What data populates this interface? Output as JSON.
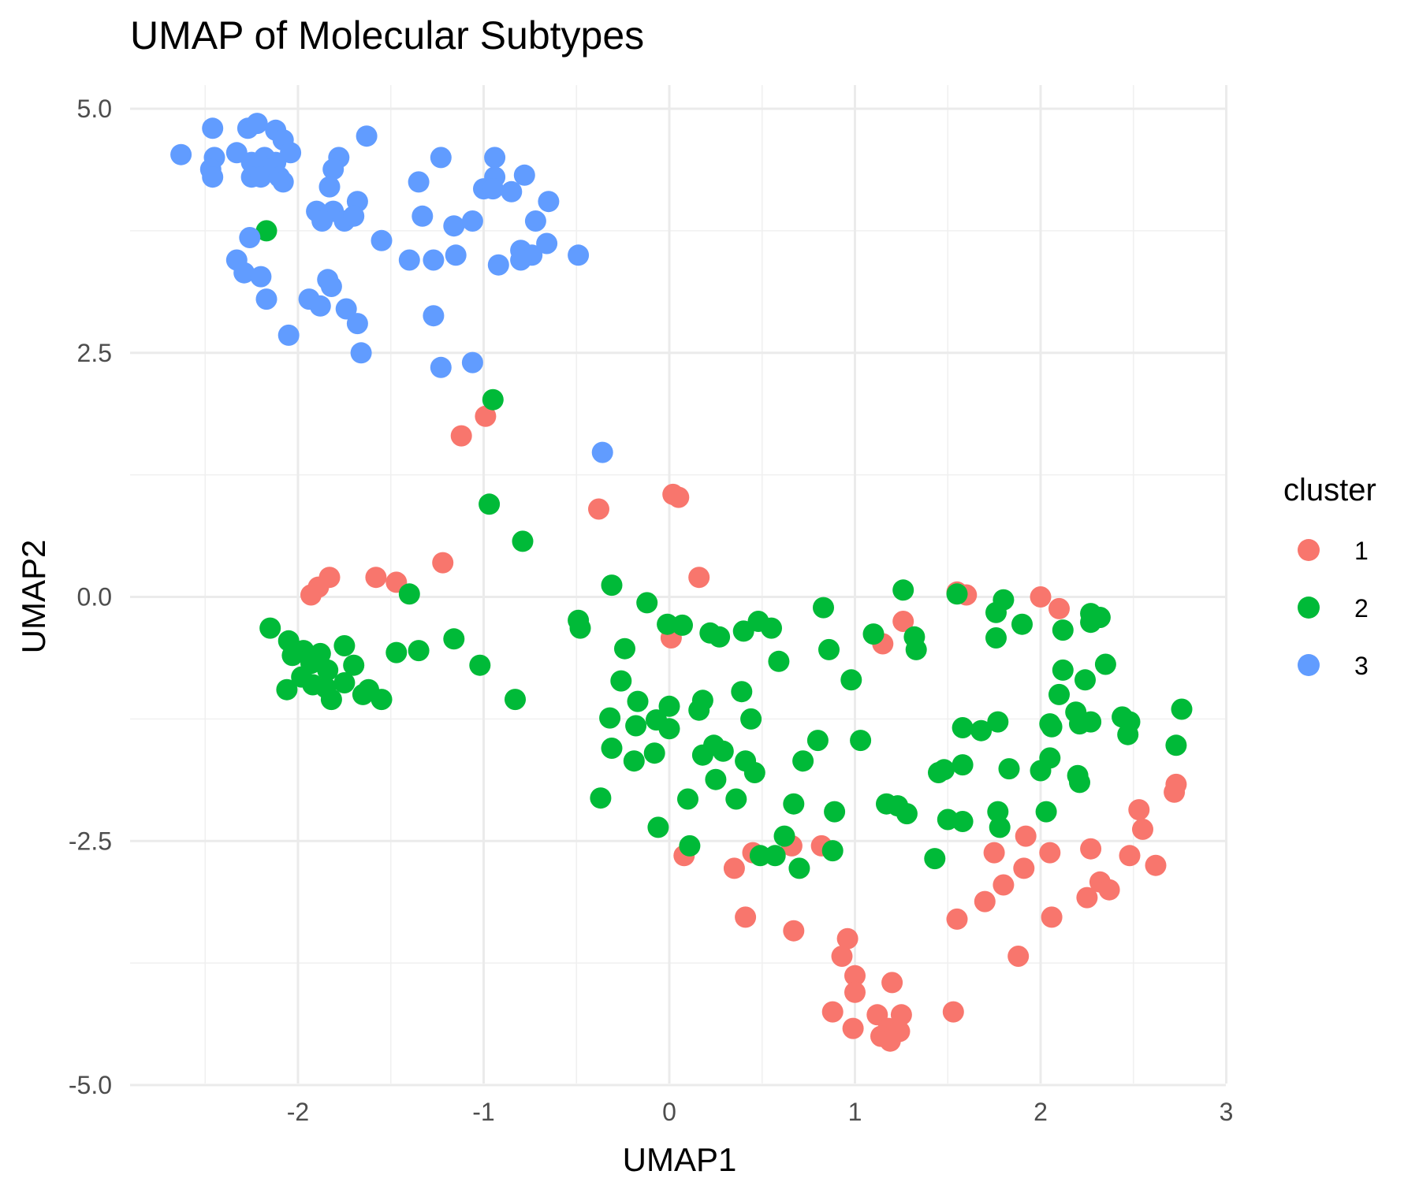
{
  "chart_data": {
    "type": "scatter",
    "title": "UMAP of Molecular Subtypes",
    "xlabel": "UMAP1",
    "ylabel": "UMAP2",
    "xlim": [
      -2.95,
      3.0
    ],
    "ylim": [
      -5.0,
      5.0
    ],
    "xticks": [
      -2,
      -1,
      0,
      1,
      2,
      3
    ],
    "yticks": [
      5.0,
      2.5,
      0.0,
      -2.5,
      -5.0
    ],
    "xtick_labels": [
      "-2",
      "-1",
      "0",
      "1",
      "2",
      "3"
    ],
    "ytick_labels": [
      "5.0",
      "2.5",
      "0.0",
      "-2.5",
      "-5.0"
    ],
    "grid": true,
    "legend": {
      "title": "cluster",
      "placement": "right"
    },
    "series": [
      {
        "name": "1",
        "color": "#F8766D",
        "points": [
          [
            -0.99,
            1.85
          ],
          [
            -1.12,
            1.65
          ],
          [
            -0.38,
            0.9
          ],
          [
            0.02,
            1.05
          ],
          [
            0.05,
            1.02
          ],
          [
            0.16,
            0.2
          ],
          [
            -1.22,
            0.35
          ],
          [
            -1.58,
            0.2
          ],
          [
            -1.47,
            0.15
          ],
          [
            -1.83,
            0.2
          ],
          [
            -1.89,
            0.1
          ],
          [
            -1.93,
            0.02
          ],
          [
            0.01,
            -0.42
          ],
          [
            1.55,
            0.05
          ],
          [
            1.6,
            0.02
          ],
          [
            2.0,
            0.0
          ],
          [
            2.1,
            -0.12
          ],
          [
            1.26,
            -0.25
          ],
          [
            1.15,
            -0.48
          ],
          [
            2.73,
            -1.92
          ],
          [
            2.72,
            -2.0
          ],
          [
            2.53,
            -2.18
          ],
          [
            2.55,
            -2.38
          ],
          [
            2.27,
            -2.58
          ],
          [
            2.48,
            -2.65
          ],
          [
            2.62,
            -2.75
          ],
          [
            2.32,
            -2.92
          ],
          [
            2.37,
            -3.0
          ],
          [
            2.25,
            -3.08
          ],
          [
            1.92,
            -2.45
          ],
          [
            2.05,
            -2.62
          ],
          [
            1.75,
            -2.62
          ],
          [
            1.91,
            -2.78
          ],
          [
            1.8,
            -2.95
          ],
          [
            1.7,
            -3.12
          ],
          [
            2.06,
            -3.28
          ],
          [
            1.55,
            -3.3
          ],
          [
            1.88,
            -3.68
          ],
          [
            0.08,
            -2.65
          ],
          [
            0.35,
            -2.78
          ],
          [
            0.45,
            -2.62
          ],
          [
            0.66,
            -2.55
          ],
          [
            0.82,
            -2.55
          ],
          [
            0.41,
            -3.28
          ],
          [
            0.67,
            -3.42
          ],
          [
            0.96,
            -3.5
          ],
          [
            0.93,
            -3.68
          ],
          [
            1.0,
            -3.88
          ],
          [
            1.0,
            -4.05
          ],
          [
            1.2,
            -3.95
          ],
          [
            0.88,
            -4.25
          ],
          [
            1.12,
            -4.28
          ],
          [
            1.25,
            -4.28
          ],
          [
            0.99,
            -4.42
          ],
          [
            1.18,
            -4.42
          ],
          [
            1.24,
            -4.45
          ],
          [
            1.14,
            -4.5
          ],
          [
            1.19,
            -4.55
          ],
          [
            1.53,
            -4.25
          ]
        ]
      },
      {
        "name": "2",
        "color": "#00BA38",
        "points": [
          [
            -2.17,
            3.75
          ],
          [
            -0.95,
            2.02
          ],
          [
            -0.97,
            0.95
          ],
          [
            -0.79,
            0.57
          ],
          [
            -0.31,
            0.12
          ],
          [
            1.26,
            0.07
          ],
          [
            1.55,
            0.03
          ],
          [
            1.8,
            -0.03
          ],
          [
            1.76,
            -0.16
          ],
          [
            2.27,
            -0.17
          ],
          [
            2.32,
            -0.21
          ],
          [
            2.27,
            -0.26
          ],
          [
            1.9,
            -0.28
          ],
          [
            2.12,
            -0.34
          ],
          [
            1.76,
            -0.42
          ],
          [
            -0.12,
            -0.06
          ],
          [
            -0.49,
            -0.24
          ],
          [
            -0.48,
            -0.32
          ],
          [
            -0.01,
            -0.28
          ],
          [
            0.07,
            -0.29
          ],
          [
            0.22,
            -0.37
          ],
          [
            0.27,
            -0.41
          ],
          [
            0.4,
            -0.35
          ],
          [
            0.48,
            -0.25
          ],
          [
            0.55,
            -0.32
          ],
          [
            0.83,
            -0.11
          ],
          [
            1.1,
            -0.38
          ],
          [
            1.32,
            -0.41
          ],
          [
            1.33,
            -0.54
          ],
          [
            0.86,
            -0.54
          ],
          [
            -0.24,
            -0.53
          ],
          [
            0.59,
            -0.66
          ],
          [
            2.35,
            -0.69
          ],
          [
            2.12,
            -0.75
          ],
          [
            2.24,
            -0.85
          ],
          [
            -0.26,
            -0.86
          ],
          [
            0.98,
            -0.85
          ],
          [
            2.1,
            -1.0
          ],
          [
            0.39,
            -0.97
          ],
          [
            -0.17,
            -1.07
          ],
          [
            0.18,
            -1.06
          ],
          [
            0.0,
            -1.12
          ],
          [
            0.16,
            -1.16
          ],
          [
            2.19,
            -1.18
          ],
          [
            2.44,
            -1.23
          ],
          [
            2.76,
            -1.15
          ],
          [
            2.48,
            -1.28
          ],
          [
            2.27,
            -1.28
          ],
          [
            2.21,
            -1.3
          ],
          [
            2.05,
            -1.3
          ],
          [
            2.06,
            -1.33
          ],
          [
            1.77,
            -1.28
          ],
          [
            0.44,
            -1.25
          ],
          [
            -0.32,
            -1.24
          ],
          [
            -0.18,
            -1.32
          ],
          [
            -0.07,
            -1.26
          ],
          [
            0.0,
            -1.35
          ],
          [
            1.58,
            -1.34
          ],
          [
            1.68,
            -1.37
          ],
          [
            2.47,
            -1.41
          ],
          [
            0.8,
            -1.47
          ],
          [
            1.03,
            -1.47
          ],
          [
            -0.31,
            -1.55
          ],
          [
            -0.08,
            -1.6
          ],
          [
            0.18,
            -1.62
          ],
          [
            0.24,
            -1.52
          ],
          [
            0.29,
            -1.58
          ],
          [
            2.73,
            -1.52
          ],
          [
            -0.19,
            -1.68
          ],
          [
            0.41,
            -1.68
          ],
          [
            0.46,
            -1.8
          ],
          [
            0.72,
            -1.68
          ],
          [
            1.58,
            -1.72
          ],
          [
            1.48,
            -1.77
          ],
          [
            2.05,
            -1.65
          ],
          [
            1.83,
            -1.76
          ],
          [
            2.2,
            -1.83
          ],
          [
            2.21,
            -1.9
          ],
          [
            1.45,
            -1.8
          ],
          [
            2.0,
            -1.78
          ],
          [
            0.25,
            -1.87
          ],
          [
            -0.37,
            -2.06
          ],
          [
            0.1,
            -2.07
          ],
          [
            0.36,
            -2.07
          ],
          [
            0.67,
            -2.12
          ],
          [
            1.17,
            -2.12
          ],
          [
            1.23,
            -2.14
          ],
          [
            1.28,
            -2.22
          ],
          [
            0.89,
            -2.2
          ],
          [
            1.77,
            -2.2
          ],
          [
            2.03,
            -2.2
          ],
          [
            1.5,
            -2.28
          ],
          [
            1.58,
            -2.3
          ],
          [
            1.78,
            -2.36
          ],
          [
            -0.06,
            -2.36
          ],
          [
            0.11,
            -2.55
          ],
          [
            0.62,
            -2.45
          ],
          [
            0.57,
            -2.65
          ],
          [
            0.88,
            -2.6
          ],
          [
            1.43,
            -2.68
          ],
          [
            0.7,
            -2.78
          ],
          [
            0.49,
            -2.65
          ],
          [
            -2.15,
            -0.32
          ],
          [
            -2.05,
            -0.45
          ],
          [
            -1.97,
            -0.55
          ],
          [
            -1.88,
            -0.58
          ],
          [
            -1.75,
            -0.5
          ],
          [
            -2.03,
            -0.6
          ],
          [
            -1.93,
            -0.68
          ],
          [
            -1.84,
            -0.75
          ],
          [
            -1.98,
            -0.82
          ],
          [
            -1.92,
            -0.9
          ],
          [
            -1.85,
            -0.93
          ],
          [
            -2.06,
            -0.95
          ],
          [
            -1.7,
            -0.7
          ],
          [
            -1.75,
            -0.88
          ],
          [
            -1.62,
            -0.95
          ],
          [
            -1.65,
            -1.0
          ],
          [
            -1.82,
            -1.05
          ],
          [
            -1.55,
            -1.05
          ],
          [
            -1.47,
            -0.57
          ],
          [
            -1.35,
            -0.55
          ],
          [
            -1.16,
            -0.43
          ],
          [
            -1.02,
            -0.7
          ],
          [
            -0.83,
            -1.05
          ],
          [
            -1.4,
            0.03
          ]
        ]
      },
      {
        "name": "3",
        "color": "#619CFF",
        "points": [
          [
            -2.63,
            4.53
          ],
          [
            -2.46,
            4.8
          ],
          [
            -2.45,
            4.5
          ],
          [
            -2.47,
            4.38
          ],
          [
            -2.46,
            4.3
          ],
          [
            -2.33,
            4.55
          ],
          [
            -2.27,
            4.8
          ],
          [
            -2.22,
            4.85
          ],
          [
            -2.25,
            4.45
          ],
          [
            -2.25,
            4.3
          ],
          [
            -2.18,
            4.5
          ],
          [
            -2.12,
            4.78
          ],
          [
            -2.08,
            4.68
          ],
          [
            -2.04,
            4.55
          ],
          [
            -2.12,
            4.45
          ],
          [
            -2.16,
            4.38
          ],
          [
            -2.2,
            4.3
          ],
          [
            -2.1,
            4.3
          ],
          [
            -2.08,
            4.25
          ],
          [
            -1.63,
            4.72
          ],
          [
            -1.78,
            4.5
          ],
          [
            -1.81,
            4.38
          ],
          [
            -1.83,
            4.2
          ],
          [
            -1.35,
            4.25
          ],
          [
            -1.23,
            4.5
          ],
          [
            -1.0,
            4.18
          ],
          [
            -0.94,
            4.5
          ],
          [
            -0.94,
            4.3
          ],
          [
            -0.95,
            4.18
          ],
          [
            -0.85,
            4.15
          ],
          [
            -0.78,
            4.32
          ],
          [
            -0.65,
            4.05
          ],
          [
            -0.72,
            3.85
          ],
          [
            -1.68,
            4.05
          ],
          [
            -1.9,
            3.95
          ],
          [
            -1.81,
            3.95
          ],
          [
            -1.87,
            3.85
          ],
          [
            -1.75,
            3.85
          ],
          [
            -1.7,
            3.9
          ],
          [
            -1.33,
            3.9
          ],
          [
            -1.16,
            3.8
          ],
          [
            -1.06,
            3.85
          ],
          [
            -2.26,
            3.68
          ],
          [
            -1.55,
            3.65
          ],
          [
            -1.15,
            3.5
          ],
          [
            -1.27,
            3.45
          ],
          [
            -1.4,
            3.45
          ],
          [
            -0.66,
            3.62
          ],
          [
            -0.8,
            3.55
          ],
          [
            -0.74,
            3.5
          ],
          [
            -0.8,
            3.45
          ],
          [
            -0.49,
            3.5
          ],
          [
            -0.92,
            3.4
          ],
          [
            -2.33,
            3.45
          ],
          [
            -2.29,
            3.32
          ],
          [
            -2.2,
            3.28
          ],
          [
            -1.84,
            3.25
          ],
          [
            -1.82,
            3.18
          ],
          [
            -1.94,
            3.05
          ],
          [
            -1.88,
            2.98
          ],
          [
            -2.17,
            3.05
          ],
          [
            -1.74,
            2.95
          ],
          [
            -1.68,
            2.8
          ],
          [
            -1.27,
            2.88
          ],
          [
            -2.05,
            2.68
          ],
          [
            -1.66,
            2.5
          ],
          [
            -1.23,
            2.35
          ],
          [
            -1.06,
            2.4
          ],
          [
            -0.36,
            1.48
          ]
        ]
      }
    ]
  }
}
